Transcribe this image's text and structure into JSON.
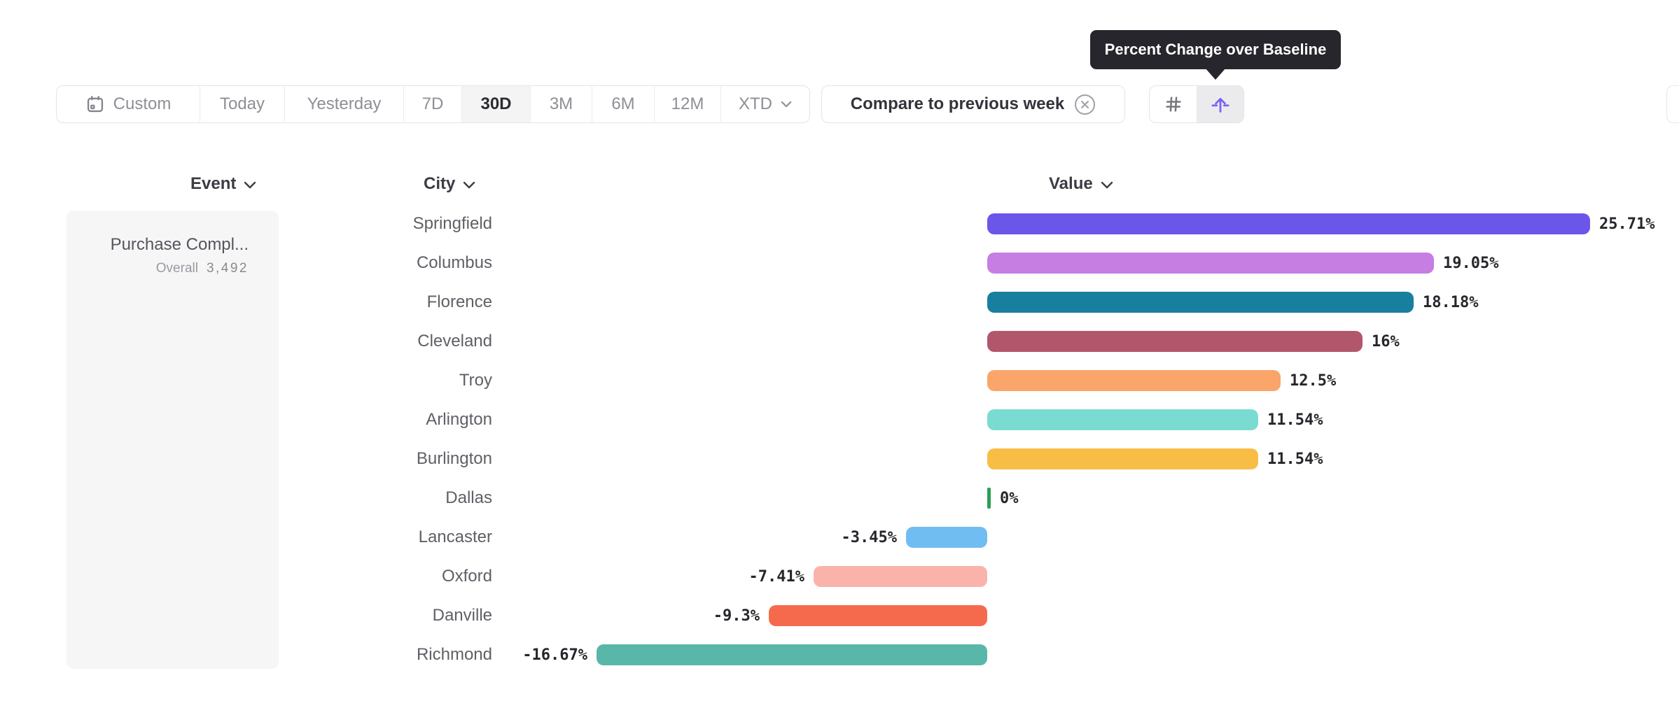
{
  "toolbar": {
    "ranges": [
      {
        "label": "Custom",
        "icon": "calendar-icon",
        "selected": false
      },
      {
        "label": "Today",
        "selected": false
      },
      {
        "label": "Yesterday",
        "selected": false
      },
      {
        "label": "7D",
        "selected": false
      },
      {
        "label": "30D",
        "selected": true
      },
      {
        "label": "3M",
        "selected": false
      },
      {
        "label": "6M",
        "selected": false
      },
      {
        "label": "12M",
        "selected": false
      },
      {
        "label": "XTD",
        "selected": false,
        "chevron": true
      }
    ],
    "compare_label": "Compare to previous week"
  },
  "tooltip": {
    "text": "Percent Change over Baseline"
  },
  "columns": {
    "event": "Event",
    "city": "City",
    "value": "Value"
  },
  "event_card": {
    "name": "Purchase Compl...",
    "metric_label": "Overall",
    "metric_value": "3,492"
  },
  "chart_data": {
    "type": "bar",
    "orientation": "horizontal",
    "title": "Percent Change over Baseline",
    "unit": "%",
    "categories": [
      "Springfield",
      "Columbus",
      "Florence",
      "Cleveland",
      "Troy",
      "Arlington",
      "Burlington",
      "Dallas",
      "Lancaster",
      "Oxford",
      "Danville",
      "Richmond"
    ],
    "values": [
      25.71,
      19.05,
      18.18,
      16,
      12.5,
      11.54,
      11.54,
      0,
      -3.45,
      -7.41,
      -9.3,
      -16.67
    ],
    "value_labels": [
      "25.71%",
      "19.05%",
      "18.18%",
      "16%",
      "12.5%",
      "11.54%",
      "11.54%",
      "0%",
      "-3.45%",
      "-7.41%",
      "-9.3%",
      "-16.67%"
    ],
    "colors": [
      "#6A56E8",
      "#C67EE2",
      "#187F9F",
      "#B2566C",
      "#FAA569",
      "#7ADCD1",
      "#F7BD45",
      "#2D9E55",
      "#70BDF2",
      "#FAB3AB",
      "#F56A4D",
      "#58B7A8"
    ],
    "zero_baseline": true,
    "legend": "none",
    "grid": "off"
  },
  "colors": {
    "accent_purple": "#7A63F1",
    "tooltip_bg": "#26262C",
    "selected_segment_bg": "#F4F4F5",
    "border": "#E4E4E7"
  }
}
